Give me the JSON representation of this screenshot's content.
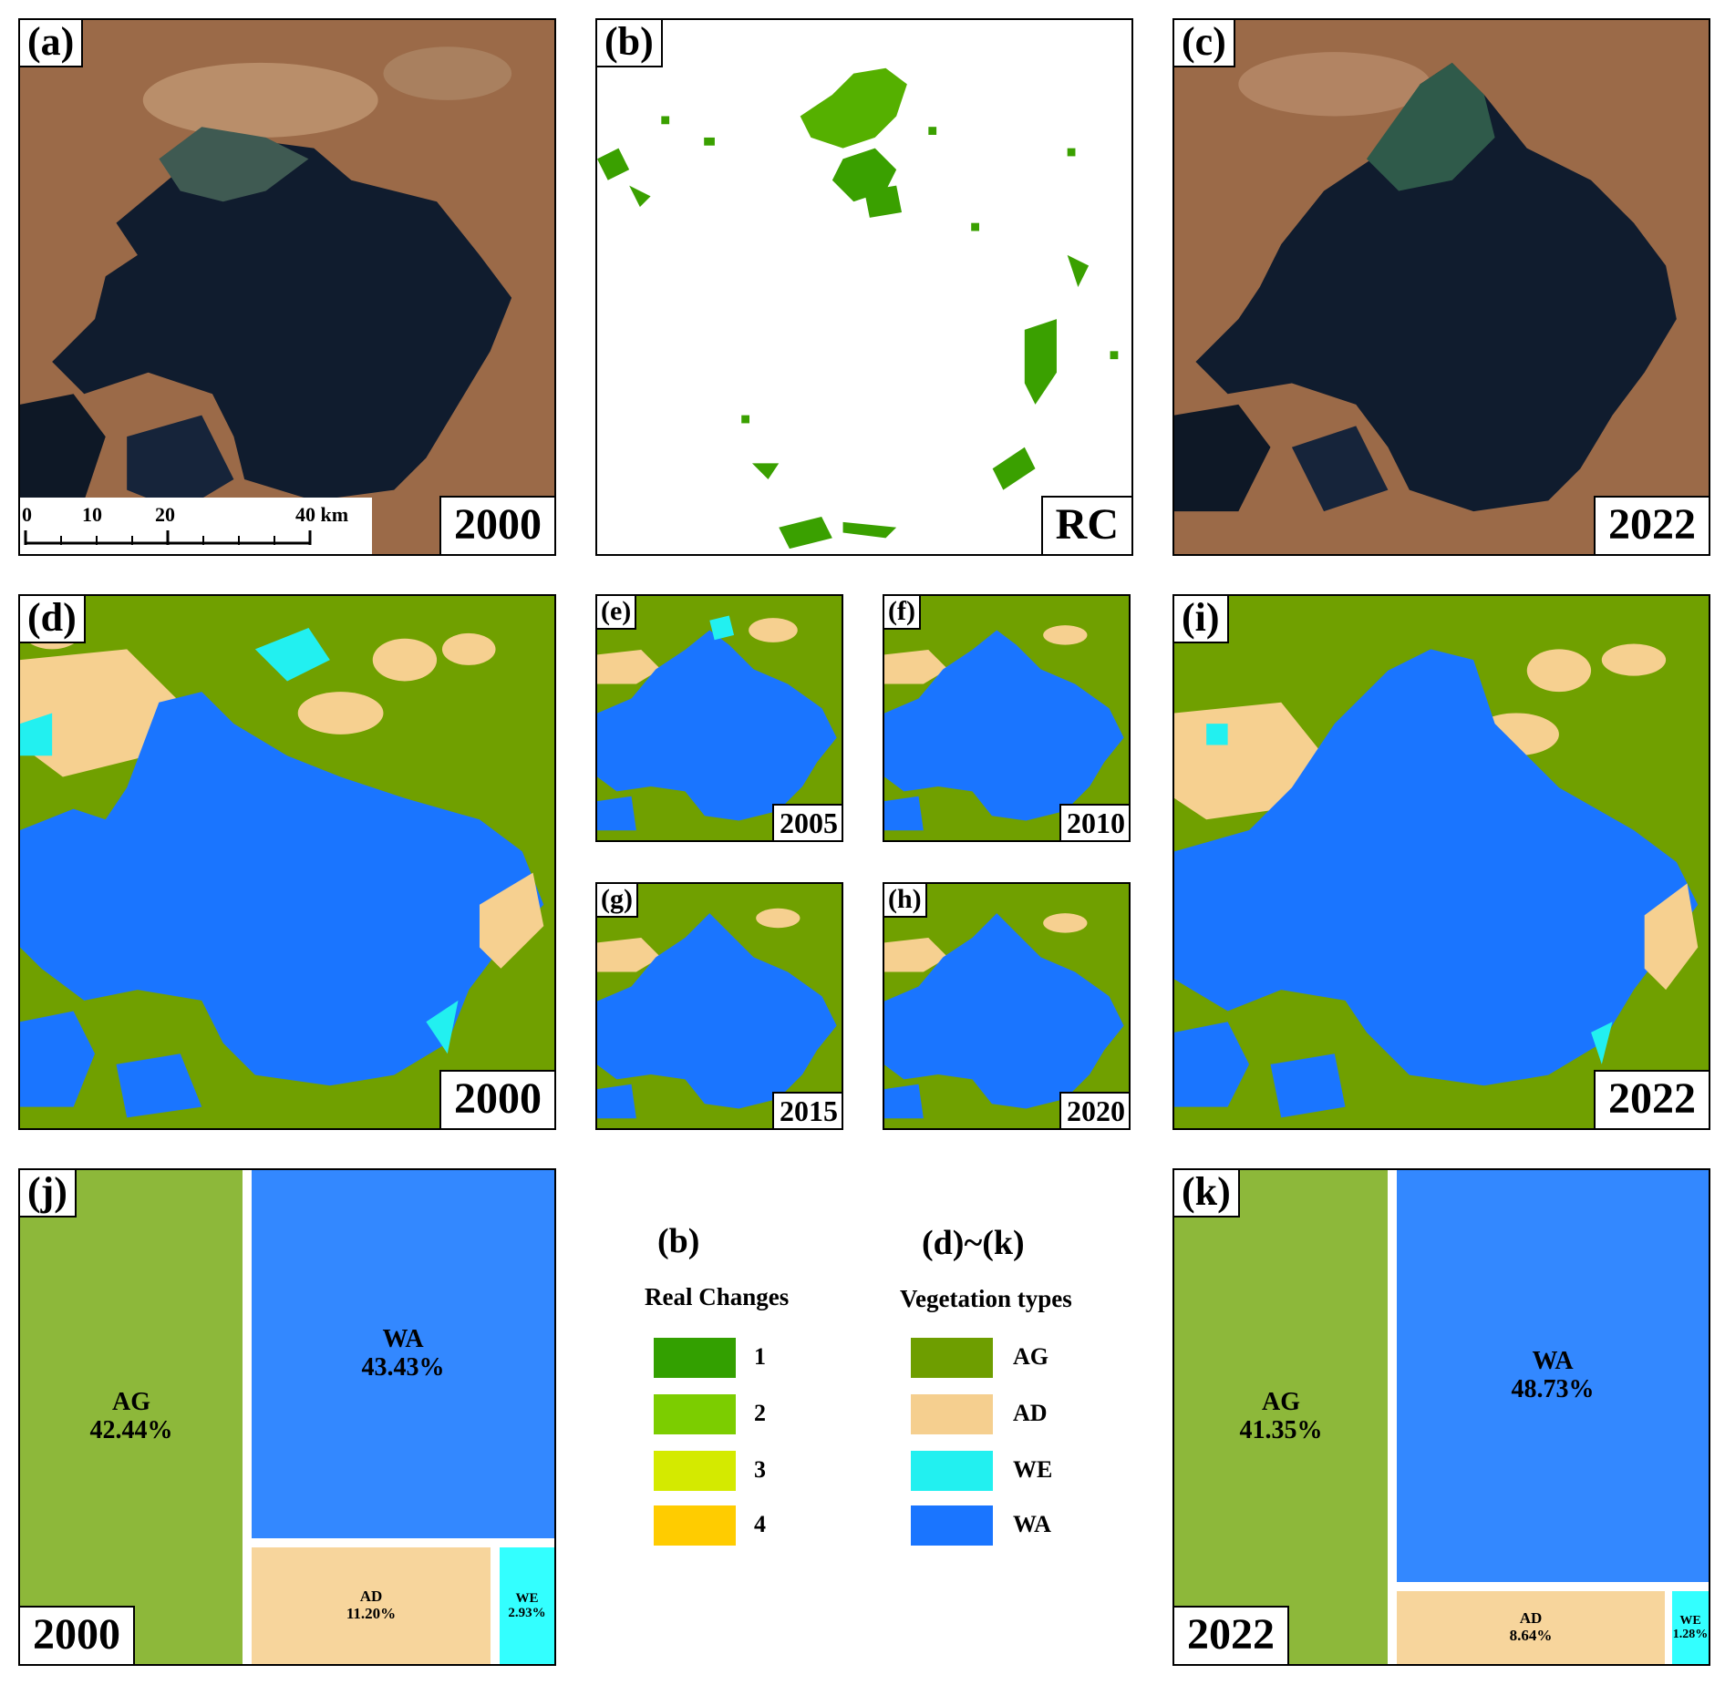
{
  "panels": {
    "a": {
      "tag": "(a)",
      "year": "2000",
      "scale": {
        "t0": "0",
        "t10": "10",
        "t20": "20",
        "t40": "40 km"
      }
    },
    "b": {
      "tag": "(b)",
      "label": "RC"
    },
    "c": {
      "tag": "(c)",
      "year": "2022"
    },
    "d": {
      "tag": "(d)",
      "year": "2000"
    },
    "e": {
      "tag": "(e)",
      "year": "2005"
    },
    "f": {
      "tag": "(f)",
      "year": "2010"
    },
    "g": {
      "tag": "(g)",
      "year": "2015"
    },
    "h": {
      "tag": "(h)",
      "year": "2020"
    },
    "i": {
      "tag": "(i)",
      "year": "2022"
    },
    "j": {
      "tag": "(j)",
      "year": "2000",
      "cells": {
        "AG": {
          "name": "AG",
          "pct": "42.44%"
        },
        "WA": {
          "name": "WA",
          "pct": "43.43%"
        },
        "AD": {
          "name": "AD",
          "pct": "11.20%"
        },
        "WE": {
          "name": "WE",
          "pct": "2.93%"
        }
      }
    },
    "k": {
      "tag": "(k)",
      "year": "2022",
      "cells": {
        "AG": {
          "name": "AG",
          "pct": "41.35%"
        },
        "WA": {
          "name": "WA",
          "pct": "48.73%"
        },
        "AD": {
          "name": "AD",
          "pct": "8.64%"
        },
        "WE": {
          "name": "WE",
          "pct": "1.28%"
        }
      }
    }
  },
  "legend": {
    "rc": {
      "header": "(b)",
      "title": "Real Changes",
      "items": [
        {
          "label": "1",
          "color": "#33a000"
        },
        {
          "label": "2",
          "color": "#7ccd00"
        },
        {
          "label": "3",
          "color": "#d4ea00"
        },
        {
          "label": "4",
          "color": "#ffcc00"
        }
      ]
    },
    "veg": {
      "header": "(d)~(k)",
      "title": "Vegetation types",
      "items": [
        {
          "label": "AG",
          "color": "#6e9e00"
        },
        {
          "label": "AD",
          "color": "#f5cf8f"
        },
        {
          "label": "WE",
          "color": "#22f0f0"
        },
        {
          "label": "WA",
          "color": "#1a75ff"
        }
      ]
    }
  },
  "colors": {
    "AG": "#70a000",
    "AD": "#f6d090",
    "WE": "#22f0f0",
    "WA": "#1a75ff",
    "treemap_AG": "#8db83a",
    "treemap_WA": "#3388ff",
    "treemap_AD": "#f7d59c",
    "treemap_WE": "#33ffff"
  }
}
